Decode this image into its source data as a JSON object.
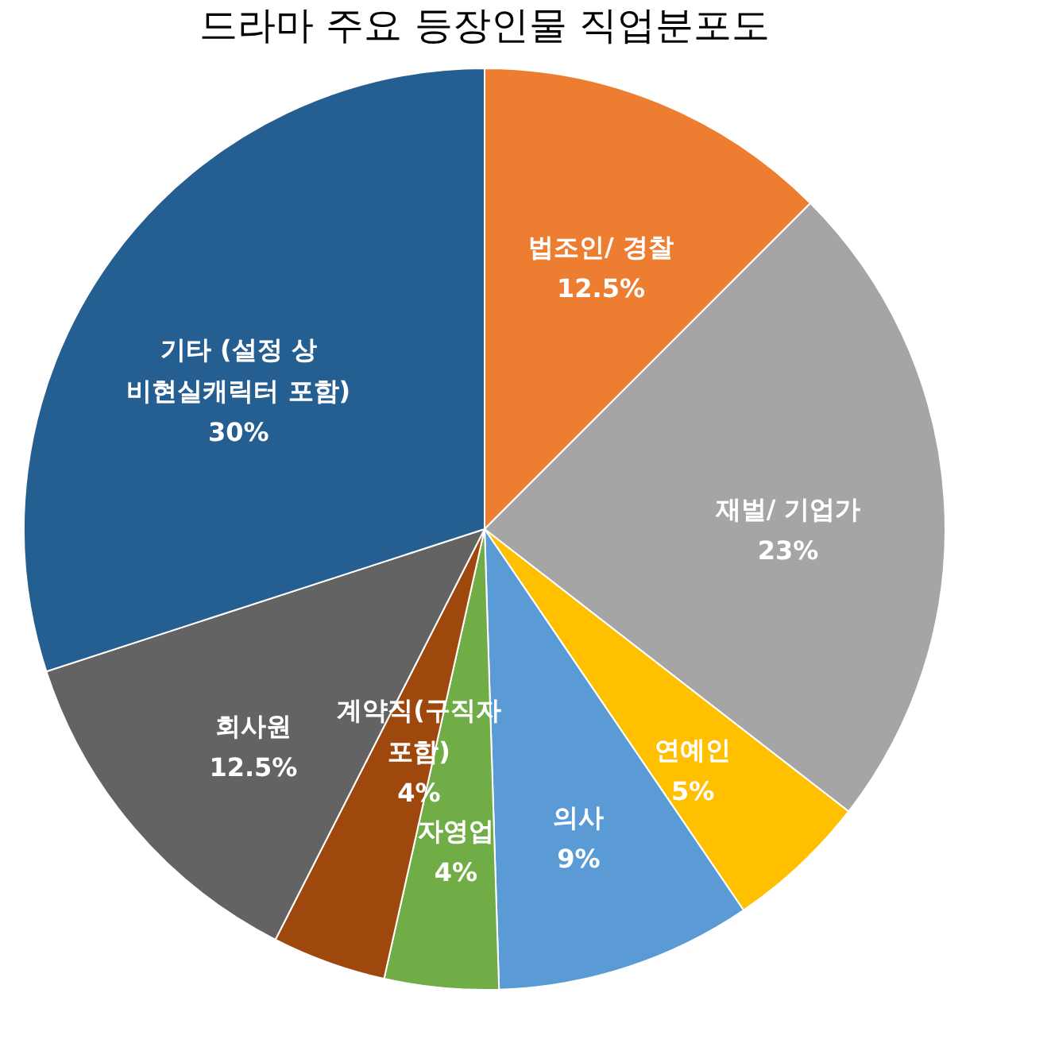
{
  "chart_data": {
    "type": "pie",
    "title": "드라마 주요 등장인물 직업분포도",
    "categories": [
      "법조인/ 경찰",
      "재벌/ 기업가",
      "연예인",
      "의사",
      "자영업",
      "계약직(구직자 포함)",
      "회사원",
      "기타 (설정 상 비현실캐릭터 포함)"
    ],
    "values": [
      12.5,
      23,
      5,
      9,
      4,
      4,
      12.5,
      30
    ],
    "value_labels": [
      "12.5%",
      "23%",
      "5%",
      "9%",
      "4%",
      "4%",
      "12.5%",
      "30%"
    ],
    "colors": [
      "#ed7d31",
      "#a5a5a5",
      "#ffc000",
      "#5b9bd5",
      "#70ad47",
      "#9e480e",
      "#636363",
      "#255e91"
    ],
    "legend": false
  }
}
